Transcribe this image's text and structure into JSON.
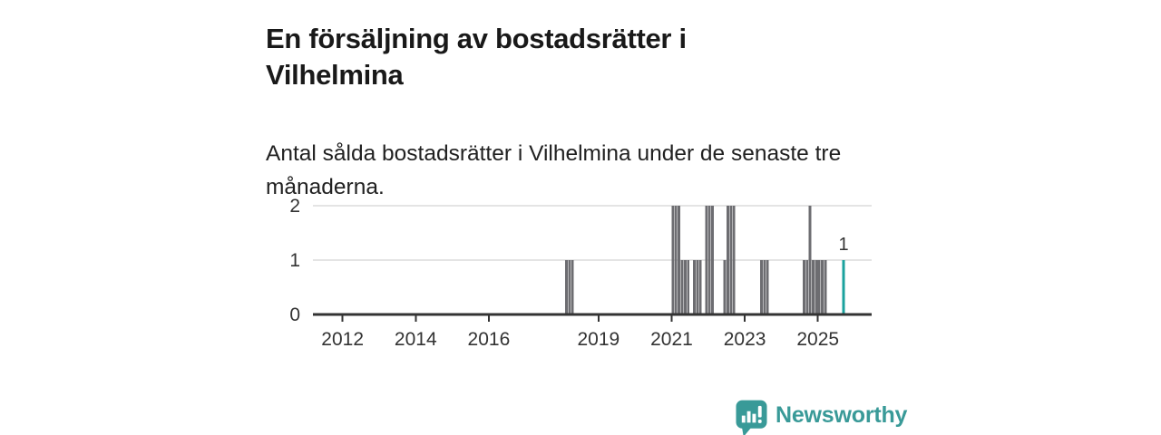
{
  "header": {
    "title": "En försäljning av bostadsrätter i Vilhelmina",
    "subtitle": "Antal sålda bostadsrätter i Vilhelmina under de senaste tre månaderna."
  },
  "chart_data": {
    "type": "bar",
    "title": "En försäljning av bostadsrätter i Vilhelmina",
    "subtitle": "Antal sålda bostadsrätter i Vilhelmina under de senaste tre månaderna.",
    "xlabel": "",
    "ylabel": "",
    "x_domain": [
      2011.19,
      2026.47
    ],
    "x_ticks": [
      "2012",
      "2014",
      "2016",
      "2019",
      "2021",
      "2023",
      "2025"
    ],
    "ylim": [
      0,
      2
    ],
    "y_ticks": [
      0,
      1,
      2
    ],
    "grid": "horizontal",
    "legend": "none",
    "colors": {
      "bar": "#6d6d71",
      "highlight": "#1ba29e",
      "axis": "#333333",
      "grid": "#e4e4e4",
      "tick_text": "#333333",
      "annotation_text": "#333333"
    },
    "bars": [
      {
        "month": "2018-02",
        "value": 1
      },
      {
        "month": "2018-03",
        "value": 1
      },
      {
        "month": "2018-04",
        "value": 1
      },
      {
        "month": "2021-01",
        "value": 2
      },
      {
        "month": "2021-02",
        "value": 2
      },
      {
        "month": "2021-03",
        "value": 2
      },
      {
        "month": "2021-04",
        "value": 1
      },
      {
        "month": "2021-05",
        "value": 1
      },
      {
        "month": "2021-06",
        "value": 1
      },
      {
        "month": "2021-08",
        "value": 1
      },
      {
        "month": "2021-09",
        "value": 1
      },
      {
        "month": "2021-10",
        "value": 1
      },
      {
        "month": "2021-12",
        "value": 2
      },
      {
        "month": "2022-01",
        "value": 2
      },
      {
        "month": "2022-02",
        "value": 2
      },
      {
        "month": "2022-06",
        "value": 1
      },
      {
        "month": "2022-07",
        "value": 2
      },
      {
        "month": "2022-08",
        "value": 2
      },
      {
        "month": "2022-09",
        "value": 2
      },
      {
        "month": "2023-06",
        "value": 1
      },
      {
        "month": "2023-07",
        "value": 1
      },
      {
        "month": "2023-08",
        "value": 1
      },
      {
        "month": "2024-08",
        "value": 1
      },
      {
        "month": "2024-09",
        "value": 1
      },
      {
        "month": "2024-10",
        "value": 2
      },
      {
        "month": "2024-11",
        "value": 1
      },
      {
        "month": "2024-12",
        "value": 1
      },
      {
        "month": "2025-01",
        "value": 1
      },
      {
        "month": "2025-02",
        "value": 1
      },
      {
        "month": "2025-03",
        "value": 1
      },
      {
        "month": "2025-09",
        "value": 1,
        "highlight": true
      }
    ],
    "annotation": {
      "text": "1",
      "month": "2025-09"
    }
  },
  "footer": {
    "brand": "Newsworthy",
    "brand_color": "#399a98"
  }
}
